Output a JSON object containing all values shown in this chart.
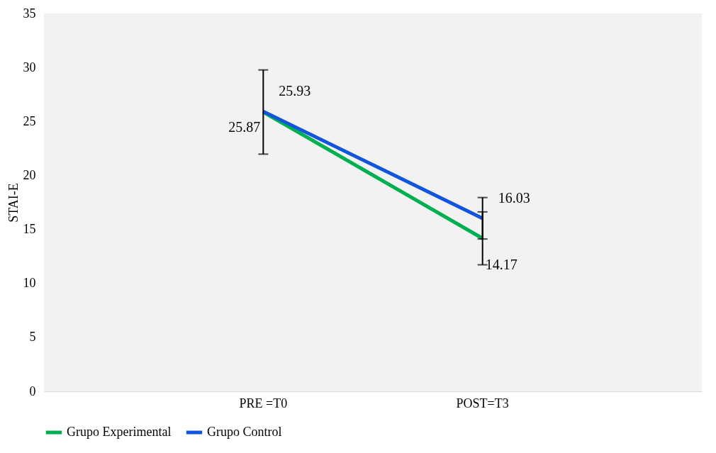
{
  "chart_data": {
    "type": "line",
    "ylabel": "STAI-E",
    "categories": [
      "PRE =T0",
      "POST=T3"
    ],
    "series": [
      {
        "name": "Grupo Experimental",
        "color": "#00b050",
        "values": [
          25.87,
          14.17
        ],
        "errors": [
          3.9,
          2.45
        ]
      },
      {
        "name": "Grupo Control",
        "color": "#1155dd",
        "values": [
          25.93,
          16.03
        ],
        "errors": [
          null,
          1.92
        ]
      }
    ],
    "ylim": [
      0,
      35
    ],
    "yticks": [
      0,
      5,
      10,
      15,
      20,
      25,
      30,
      35
    ],
    "grid": false,
    "legend": "bottom",
    "data_labels": true,
    "marker": "none",
    "line_style": "solid"
  }
}
